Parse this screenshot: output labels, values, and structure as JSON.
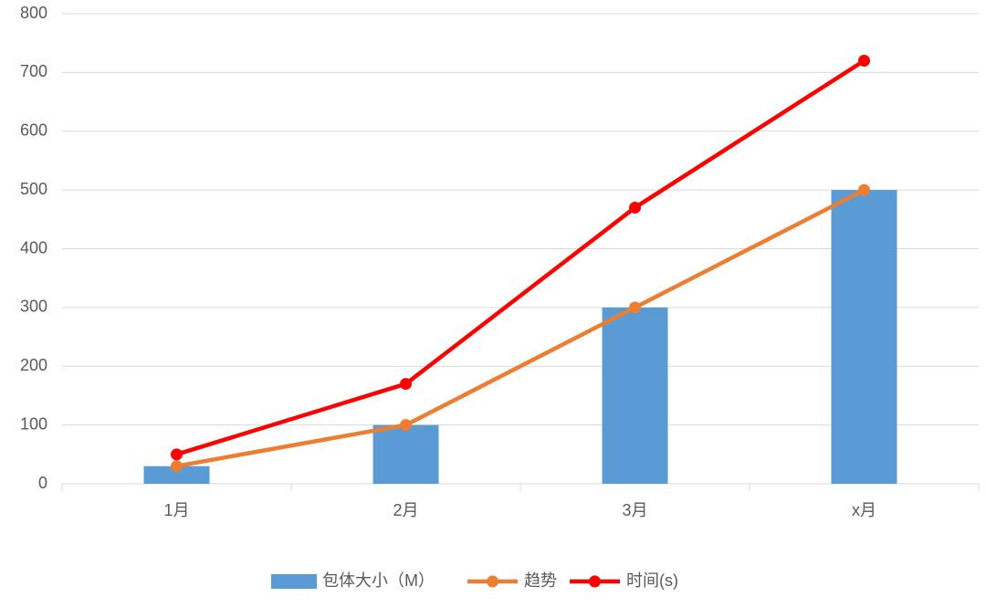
{
  "chart_data": {
    "type": "combo",
    "categories": [
      "1月",
      "2月",
      "3月",
      "x月"
    ],
    "series": [
      {
        "name": "包体大小（M）",
        "type": "bar",
        "color": "#5b9bd5",
        "values": [
          30,
          100,
          300,
          500
        ]
      },
      {
        "name": "趋势",
        "type": "line",
        "color": "#ed7d31",
        "values": [
          30,
          100,
          300,
          500
        ]
      },
      {
        "name": "时间(s)",
        "type": "line",
        "color": "#ff0000",
        "values": [
          50,
          170,
          470,
          720
        ]
      }
    ],
    "ylim": [
      0,
      800
    ],
    "yticks": [
      0,
      100,
      200,
      300,
      400,
      500,
      600,
      700,
      800
    ],
    "grid": true,
    "legend": "bottom"
  }
}
